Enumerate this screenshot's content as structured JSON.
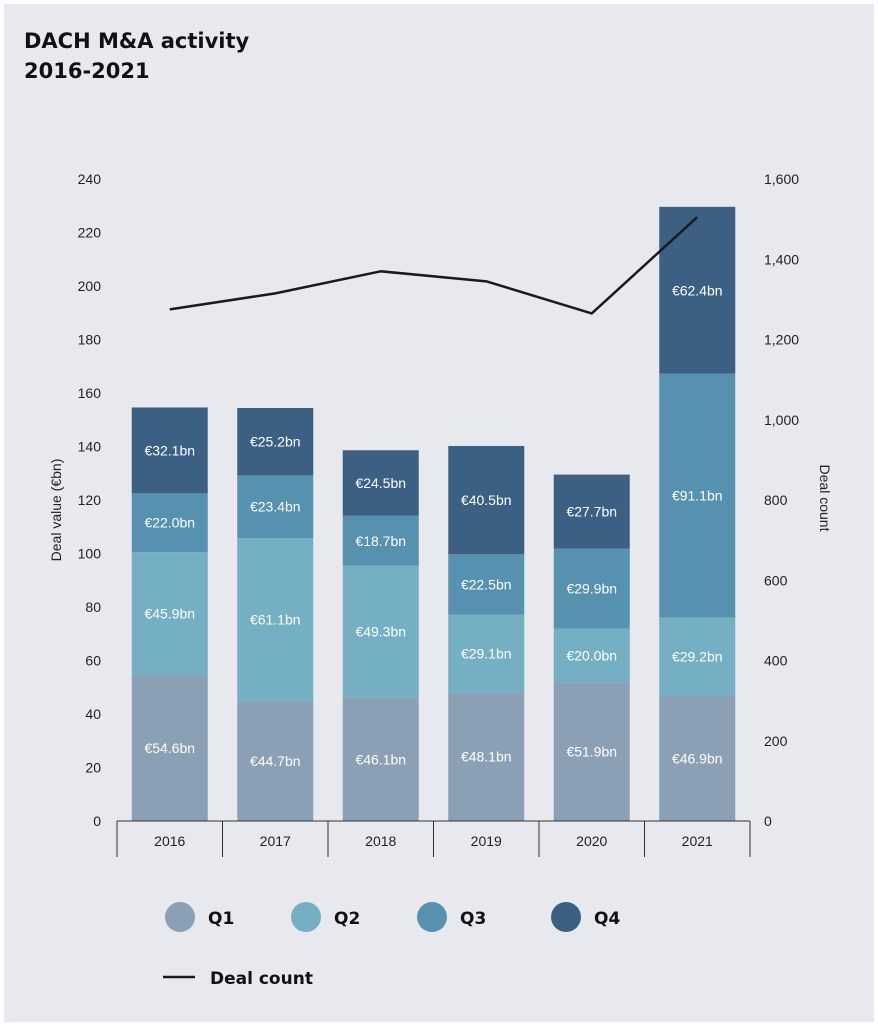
{
  "chart_data": {
    "type": "bar",
    "stacked": true,
    "title": "DACH M&A activity",
    "subtitle": "2016-2021",
    "categories": [
      "2016",
      "2017",
      "2018",
      "2019",
      "2020",
      "2021"
    ],
    "series": [
      {
        "name": "Q1",
        "color": "#8b9fb5",
        "values": [
          54.6,
          44.7,
          46.1,
          48.1,
          51.9,
          46.9
        ],
        "labels": [
          "€54.6bn",
          "€44.7bn",
          "€46.1bn",
          "€48.1bn",
          "€51.9bn",
          "€46.9bn"
        ]
      },
      {
        "name": "Q2",
        "color": "#74afc3",
        "values": [
          45.9,
          61.1,
          49.3,
          29.1,
          20.0,
          29.2
        ],
        "labels": [
          "€45.9bn",
          "€61.1bn",
          "€49.3bn",
          "€29.1bn",
          "€20.0bn",
          "€29.2bn"
        ]
      },
      {
        "name": "Q3",
        "color": "#5691b0",
        "values": [
          22.0,
          23.4,
          18.7,
          22.5,
          29.9,
          91.1
        ],
        "labels": [
          "€22.0bn",
          "€23.4bn",
          "€18.7bn",
          "€22.5bn",
          "€29.9bn",
          "€91.1bn"
        ]
      },
      {
        "name": "Q4",
        "color": "#3c5f84",
        "values": [
          32.1,
          25.2,
          24.5,
          40.5,
          27.7,
          62.4
        ],
        "labels": [
          "€32.1bn",
          "€25.2bn",
          "€24.5bn",
          "€40.5bn",
          "€27.7bn",
          "€62.4bn"
        ]
      }
    ],
    "line_series": {
      "name": "Deal count",
      "color": "#1a1a1a",
      "axis": "right",
      "values": [
        1275,
        1315,
        1370,
        1345,
        1265,
        1505
      ]
    },
    "ylabel": "Deal value (€bn)",
    "y2label": "Deal count",
    "ylim": [
      0,
      240
    ],
    "y2lim": [
      0,
      1600
    ],
    "yticks": [
      0,
      20,
      40,
      60,
      80,
      100,
      120,
      140,
      160,
      180,
      200,
      220,
      240
    ],
    "y2ticks": [
      0,
      200,
      400,
      600,
      800,
      1000,
      1200,
      1400,
      1600
    ],
    "y2tick_labels": [
      "0",
      "200",
      "400",
      "600",
      "800",
      "1,000",
      "1,200",
      "1,400",
      "1,600"
    ],
    "grid": false,
    "legend_position": "bottom"
  }
}
